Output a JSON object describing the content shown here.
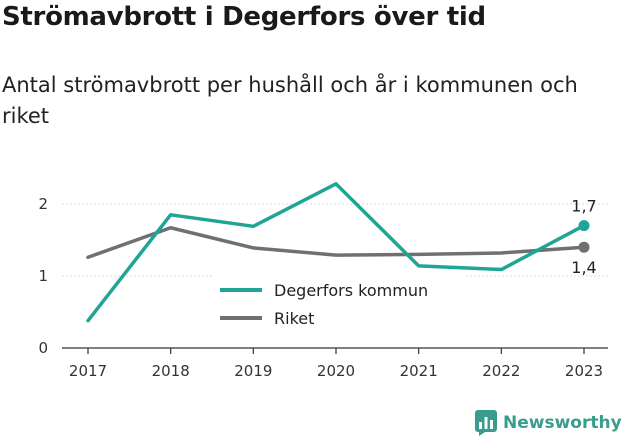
{
  "title": "Strömavbrott i Degerfors över tid",
  "subtitle": "Antal strömavbrott per hushåll och år i kommunen och riket",
  "brand": "Newsworthy",
  "colors": {
    "degerfors": "#1fa596",
    "riket": "#707070",
    "axis": "#333333",
    "grid": "#d9d9d9",
    "brand": "#3a9c8c"
  },
  "chart_data": {
    "type": "line",
    "x": [
      "2017",
      "2018",
      "2019",
      "2020",
      "2021",
      "2022",
      "2023"
    ],
    "ylim": [
      0,
      2.3
    ],
    "yticks": [
      "0",
      "1",
      "2"
    ],
    "grid": true,
    "legend_position": "center",
    "series": [
      {
        "name": "Degerfors kommun",
        "values": [
          0.38,
          1.85,
          1.69,
          2.28,
          1.14,
          1.09,
          1.7
        ],
        "end_label": "1,7"
      },
      {
        "name": "Riket",
        "values": [
          1.26,
          1.67,
          1.39,
          1.29,
          1.3,
          1.32,
          1.4
        ],
        "end_label": "1,4"
      }
    ]
  }
}
